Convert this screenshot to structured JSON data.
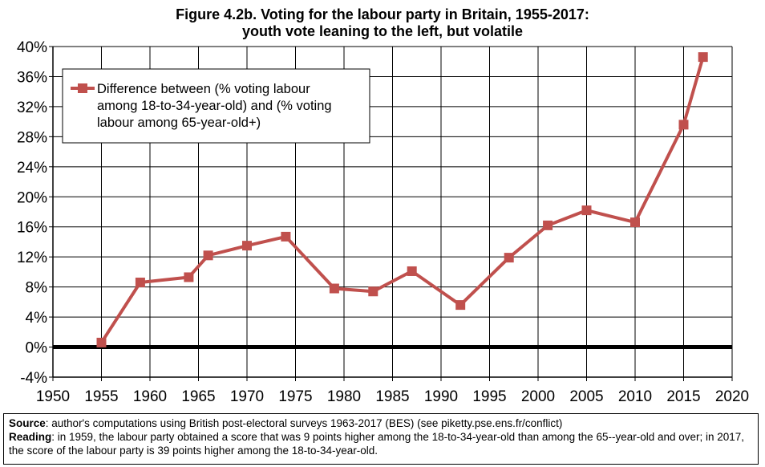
{
  "chart_data": {
    "type": "line",
    "title": "Figure 4.2b. Voting for the labour party in Britain, 1955-2017:",
    "subtitle": "youth vote leaning to the left, but volatile",
    "xlabel": "",
    "ylabel": "",
    "xlim": [
      1950,
      2020
    ],
    "ylim": [
      -4,
      40
    ],
    "x_ticks": [
      "1950",
      "1955",
      "1960",
      "1965",
      "1970",
      "1975",
      "1980",
      "1985",
      "1990",
      "1995",
      "2000",
      "2005",
      "2010",
      "2015",
      "2020"
    ],
    "y_ticks": [
      "-4%",
      "0%",
      "4%",
      "8%",
      "12%",
      "16%",
      "20%",
      "24%",
      "28%",
      "32%",
      "36%",
      "40%"
    ],
    "grid": true,
    "legend_position": "top-left",
    "series": [
      {
        "name": "Difference between (% voting labour among 18-to-34-year-old) and (% voting labour among 65-year-old+)",
        "legend_lines": [
          "Difference between (% voting labour",
          "among 18-to-34-year-old) and (% voting",
          "labour among 65-year-old+)"
        ],
        "color": "#c0504d",
        "x": [
          1955,
          1959,
          1964,
          1966,
          1970,
          1974,
          1979,
          1983,
          1987,
          1992,
          1997,
          2001,
          2005,
          2010,
          2015,
          2017
        ],
        "values": [
          0.6,
          8.6,
          9.3,
          12.2,
          13.5,
          14.7,
          7.8,
          7.4,
          10.1,
          5.6,
          11.9,
          16.2,
          18.2,
          16.6,
          29.6,
          38.6
        ]
      }
    ]
  },
  "footer": {
    "source_label": "Source",
    "source_text": ": author's computations using British post-electoral surveys 1963-2017 (BES) (see piketty.pse.ens.fr/conflict)",
    "reading_label": "Reading",
    "reading_text": ": in 1959, the labour party obtained a score that was 9 points higher among the 18-to-34-year-old than among the 65--year-old and over; in 2017, the score of the labour party is 39 points higher among the 18-to-34-year-old."
  }
}
